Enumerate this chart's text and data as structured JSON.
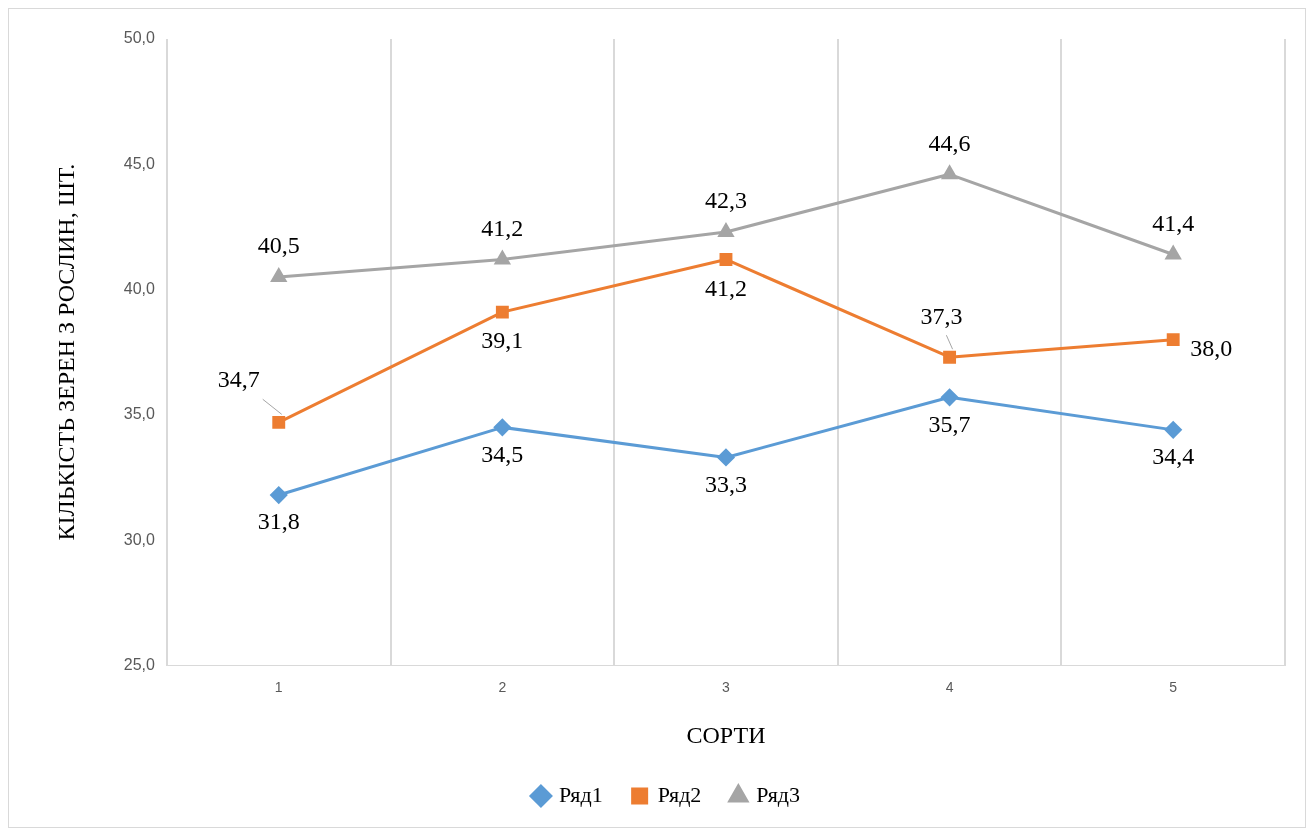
{
  "chart_data": {
    "type": "line",
    "xlabel": "СОРТИ",
    "ylabel": "КІЛЬКІСТЬ ЗЕРЕН З РОСЛИН, ШТ.",
    "categories": [
      "1",
      "2",
      "3",
      "4",
      "5"
    ],
    "series": [
      {
        "name": "Ряд1",
        "color": "#5b9bd5",
        "marker": "diamond",
        "values": [
          31.8,
          34.5,
          33.3,
          35.7,
          34.4
        ],
        "value_labels": [
          "31,8",
          "34,5",
          "33,3",
          "35,7",
          "34,4"
        ]
      },
      {
        "name": "Ряд2",
        "color": "#ed7d31",
        "marker": "square",
        "values": [
          34.7,
          39.1,
          41.2,
          37.3,
          38.0
        ],
        "value_labels": [
          "34,7",
          "39,1",
          "41,2",
          "37,3",
          "38,0"
        ]
      },
      {
        "name": "Ряд3",
        "color": "#a5a5a5",
        "marker": "triangle",
        "values": [
          40.5,
          41.2,
          42.3,
          44.6,
          41.4
        ],
        "value_labels": [
          "40,5",
          "41,2",
          "42,3",
          "44,6",
          "41,4"
        ]
      }
    ],
    "ylim": [
      25,
      50
    ],
    "yticks": [
      {
        "value": 25,
        "label": "25,0"
      },
      {
        "value": 30,
        "label": "30,0"
      },
      {
        "value": 35,
        "label": "35,0"
      },
      {
        "value": 40,
        "label": "40,0"
      },
      {
        "value": 45,
        "label": "45,0"
      },
      {
        "value": 50,
        "label": "50,0"
      }
    ],
    "grid": "x",
    "legend": "bottom"
  }
}
